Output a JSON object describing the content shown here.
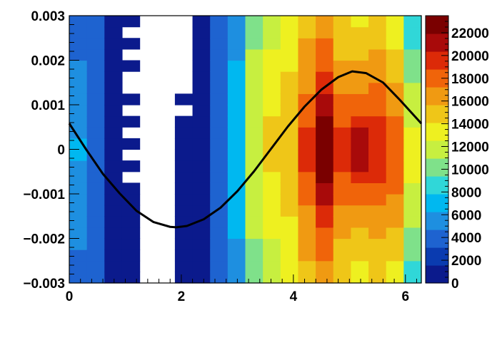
{
  "chart_data": {
    "type": "heatmap",
    "title": "",
    "xlabel": "",
    "ylabel": "",
    "xlim": [
      0,
      6.2832
    ],
    "ylim": [
      -0.003,
      0.003
    ],
    "x_bins": 20,
    "y_bins": 24,
    "x_ticks": [
      0,
      2,
      4,
      6
    ],
    "x_tick_labels": [
      "0",
      "2",
      "4",
      "6"
    ],
    "y_ticks": [
      -0.003,
      -0.002,
      -0.001,
      0,
      0.001,
      0.002,
      0.003
    ],
    "y_tick_labels": [
      "−0.003",
      "−0.002",
      "−0.001",
      "0",
      "0.001",
      "0.002",
      "0.003"
    ],
    "zlim": [
      0,
      23500
    ],
    "z_ticks": [
      0,
      2000,
      4000,
      6000,
      8000,
      10000,
      12000,
      14000,
      16000,
      18000,
      20000,
      22000
    ],
    "z_tick_labels": [
      "0",
      "2000",
      "4000",
      "6000",
      "8000",
      "10000",
      "12000",
      "14000",
      "16000",
      "18000",
      "20000",
      "22000"
    ],
    "colormap": [
      "#0b1a8c",
      "#0a3bb0",
      "#1e63d0",
      "#1e8fe0",
      "#00b8f0",
      "#30d7d8",
      "#7fe18a",
      "#c7ef40",
      "#eef020",
      "#efc618",
      "#f09a12",
      "#f0640a",
      "#dc2a08",
      "#a80a0a",
      "#7a0000"
    ],
    "column_profiles": [
      [
        4500,
        4500,
        4500,
        4800,
        4800,
        5200,
        5200,
        5600,
        5600,
        6000,
        6000,
        6400,
        6400,
        6000,
        6000,
        5600,
        5200,
        5200,
        4800,
        4800,
        4500,
        4500,
        4500,
        4500
      ],
      [
        3600,
        3600,
        3600,
        3600,
        3800,
        3800,
        4000,
        4000,
        4200,
        4200,
        4400,
        4400,
        4400,
        4400,
        4200,
        4200,
        4000,
        4000,
        3800,
        3800,
        3600,
        3600,
        3400,
        3400
      ],
      [
        600,
        600,
        800,
        800,
        800,
        1000,
        1000,
        1000,
        1200,
        1200,
        1200,
        1200,
        1200,
        1200,
        1200,
        1000,
        1000,
        1000,
        800,
        800,
        800,
        600,
        600,
        600
      ],
      [
        500,
        500,
        500,
        500,
        500,
        500,
        500,
        500,
        500,
        null,
        500,
        null,
        500,
        null,
        500,
        null,
        500,
        null,
        null,
        500,
        null,
        500,
        null,
        500
      ],
      [
        null,
        null,
        null,
        null,
        null,
        null,
        null,
        null,
        null,
        null,
        null,
        null,
        null,
        null,
        null,
        null,
        null,
        null,
        null,
        null,
        null,
        null,
        null,
        null
      ],
      [
        null,
        null,
        null,
        null,
        null,
        null,
        null,
        null,
        null,
        null,
        null,
        null,
        null,
        null,
        null,
        null,
        null,
        null,
        null,
        null,
        null,
        null,
        null,
        null
      ],
      [
        500,
        500,
        500,
        500,
        500,
        500,
        500,
        500,
        500,
        500,
        500,
        500,
        500,
        500,
        500,
        null,
        500,
        null,
        null,
        null,
        null,
        null,
        null,
        null
      ],
      [
        800,
        800,
        800,
        800,
        800,
        800,
        800,
        800,
        800,
        800,
        800,
        800,
        800,
        800,
        800,
        800,
        800,
        800,
        800,
        800,
        800,
        800,
        800,
        800
      ],
      [
        3200,
        3200,
        3200,
        3400,
        3400,
        3400,
        3600,
        3600,
        3600,
        3800,
        3800,
        3800,
        3800,
        3800,
        3800,
        3600,
        3600,
        3600,
        3400,
        3400,
        3400,
        3200,
        3200,
        3200
      ],
      [
        6000,
        6000,
        6200,
        6200,
        6400,
        6400,
        6600,
        6600,
        6800,
        6800,
        7000,
        7000,
        7000,
        7000,
        6800,
        6800,
        6600,
        6600,
        6400,
        6400,
        6200,
        6200,
        6000,
        6000
      ],
      [
        10000,
        10000,
        10500,
        10500,
        11000,
        11000,
        11500,
        11500,
        12000,
        12000,
        12500,
        12500,
        12500,
        12500,
        12500,
        12000,
        12000,
        11500,
        11500,
        11000,
        11000,
        10500,
        10500,
        10000
      ],
      [
        12000,
        12000,
        12500,
        12500,
        13000,
        13000,
        13500,
        13500,
        14000,
        14000,
        14500,
        14500,
        14500,
        14500,
        14500,
        14000,
        14000,
        13500,
        13500,
        13000,
        13000,
        12500,
        12500,
        12000
      ],
      [
        13000,
        13000,
        13500,
        13500,
        14000,
        14000,
        14500,
        14500,
        15000,
        15000,
        15500,
        15500,
        15500,
        15500,
        15500,
        15000,
        15000,
        14500,
        14500,
        14000,
        14000,
        13500,
        13500,
        13000
      ],
      [
        15500,
        15500,
        16000,
        16000,
        16500,
        16500,
        17000,
        17500,
        18000,
        18500,
        19000,
        19500,
        19500,
        19000,
        18500,
        18000,
        17500,
        17000,
        16500,
        16500,
        16000,
        16000,
        15500,
        15500
      ],
      [
        17000,
        17000,
        17500,
        18000,
        18500,
        19000,
        20000,
        20500,
        21500,
        22500,
        23000,
        23500,
        23500,
        23000,
        22000,
        21000,
        20500,
        19500,
        19000,
        18500,
        18000,
        17500,
        17000,
        17000
      ],
      [
        15000,
        15000,
        15500,
        15500,
        16000,
        16500,
        17000,
        17500,
        18000,
        18500,
        19000,
        19500,
        19500,
        19000,
        18500,
        18000,
        17500,
        17000,
        16500,
        16000,
        15500,
        15500,
        15000,
        15000
      ],
      [
        14000,
        14000,
        14500,
        15000,
        15500,
        16000,
        17000,
        17500,
        18500,
        19500,
        20500,
        21500,
        21500,
        20500,
        19500,
        18500,
        17500,
        17000,
        16500,
        16000,
        15500,
        15000,
        14500,
        14000
      ],
      [
        14500,
        14500,
        15000,
        15500,
        16000,
        16500,
        17000,
        18000,
        18500,
        19000,
        19500,
        20000,
        20000,
        19500,
        19000,
        18500,
        18000,
        17500,
        17000,
        16500,
        16000,
        15500,
        15000,
        14500
      ],
      [
        14000,
        14000,
        14500,
        15000,
        15500,
        16000,
        16500,
        17000,
        17500,
        18000,
        18500,
        18500,
        18500,
        18000,
        17500,
        17000,
        16500,
        16000,
        15500,
        15000,
        14500,
        14000,
        13500,
        13500
      ],
      [
        9000,
        9000,
        9500,
        10000,
        10500,
        11000,
        11500,
        12000,
        12500,
        13000,
        13500,
        13500,
        13500,
        13000,
        12500,
        12000,
        11500,
        11000,
        10500,
        10000,
        9500,
        9000,
        8500,
        8500
      ]
    ],
    "overlay_curve": {
      "type": "line",
      "function": "y = 0.00175 * sin(x - 1.91 + pi/2) scaled",
      "x": [
        0,
        0.3,
        0.6,
        0.9,
        1.2,
        1.5,
        1.8,
        1.91,
        2.1,
        2.4,
        2.7,
        3.0,
        3.3,
        3.6,
        3.9,
        4.2,
        4.5,
        4.8,
        5.05,
        5.3,
        5.6,
        5.9,
        6.2832
      ],
      "y": [
        0.00058,
        0.0,
        -0.00055,
        -0.00099,
        -0.00138,
        -0.00163,
        -0.00174,
        -0.00175,
        -0.00172,
        -0.00157,
        -0.00131,
        -0.00094,
        -0.00049,
        1e-05,
        0.00051,
        0.00096,
        0.00134,
        0.00162,
        0.00175,
        0.00171,
        0.0015,
        0.00111,
        0.00058
      ]
    },
    "colors": {
      "curve": "#000000",
      "frame": "#000000",
      "empty_cell": "#ffffff"
    }
  }
}
